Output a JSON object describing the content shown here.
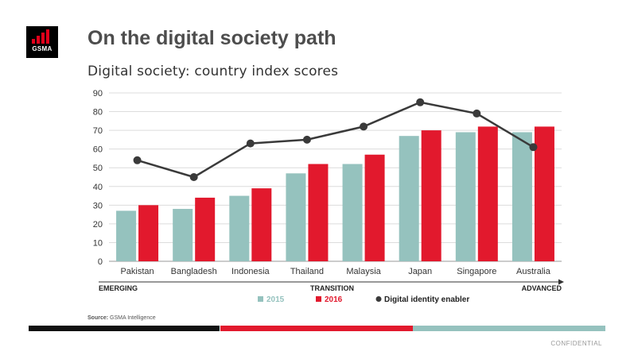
{
  "slide": {
    "title": "On the digital society path",
    "logo_text": "GSMA",
    "source_label": "Source:",
    "source_text": "GSMA Intelligence",
    "confidential": "CONFIDENTIAL"
  },
  "colors": {
    "c2015": "#95c2be",
    "c2016": "#e2192d",
    "line": "#3a3a3a",
    "footer_black": "#111111",
    "footer_red": "#e2192d",
    "footer_teal": "#95c2be"
  },
  "chart_data": {
    "type": "bar",
    "title": "Digital society: country index scores",
    "categories": [
      "Pakistan",
      "Bangladesh",
      "Indonesia",
      "Thailand",
      "Malaysia",
      "Japan",
      "Singapore",
      "Australia"
    ],
    "series": [
      {
        "name": "2015",
        "type": "bar",
        "values": [
          27,
          28,
          35,
          47,
          52,
          67,
          69,
          69
        ]
      },
      {
        "name": "2016",
        "type": "bar",
        "values": [
          30,
          34,
          39,
          52,
          57,
          70,
          72,
          72
        ]
      },
      {
        "name": "Digital identity enabler",
        "type": "line",
        "values": [
          54,
          45,
          63,
          65,
          72,
          85,
          79,
          61
        ]
      }
    ],
    "ylim": [
      0,
      90
    ],
    "yticks": [
      0,
      10,
      20,
      30,
      40,
      50,
      60,
      70,
      80,
      90
    ],
    "grid": true,
    "legend": "bottom",
    "stage_axis": [
      "EMERGING",
      "TRANSITION",
      "ADVANCED"
    ]
  }
}
